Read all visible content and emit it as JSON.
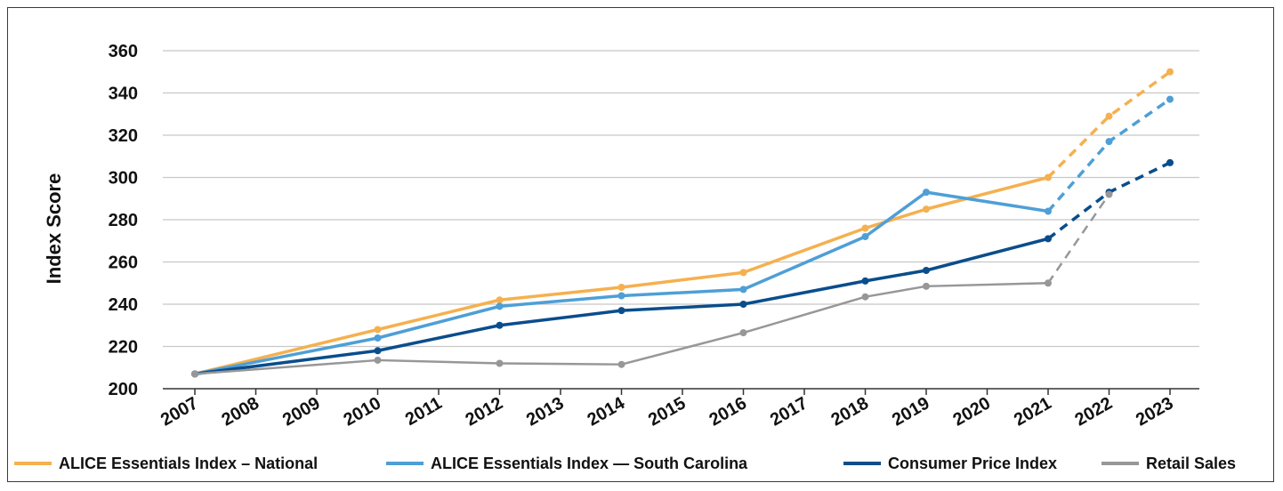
{
  "chart_data": {
    "type": "line",
    "ylabel": "Index Score",
    "ylim": [
      200,
      360
    ],
    "yticks": [
      200,
      220,
      240,
      260,
      280,
      300,
      320,
      340,
      360
    ],
    "grid": true,
    "legend_position": "bottom",
    "categories": [
      "2007",
      "2008",
      "2009",
      "2010",
      "2011",
      "2012",
      "2013",
      "2014",
      "2015",
      "2016",
      "2017",
      "2018",
      "2019",
      "2020",
      "2021",
      "2022",
      "2023"
    ],
    "projected_from": "2021",
    "series": [
      {
        "name": "ALICE Essentials Index – National",
        "color": "#F5B04F",
        "points": [
          [
            "2007",
            207
          ],
          [
            "2010",
            228
          ],
          [
            "2012",
            242
          ],
          [
            "2014",
            248
          ],
          [
            "2016",
            255
          ],
          [
            "2018",
            276
          ],
          [
            "2019",
            285
          ],
          [
            "2021",
            300
          ],
          [
            "2022",
            329
          ],
          [
            "2023",
            350
          ]
        ]
      },
      {
        "name": "ALICE Essentials Index — South Carolina",
        "color": "#4E9FD6",
        "points": [
          [
            "2007",
            207
          ],
          [
            "2010",
            224
          ],
          [
            "2012",
            239
          ],
          [
            "2014",
            244
          ],
          [
            "2016",
            247
          ],
          [
            "2018",
            272
          ],
          [
            "2019",
            293
          ],
          [
            "2021",
            284
          ],
          [
            "2022",
            317
          ],
          [
            "2023",
            337
          ]
        ]
      },
      {
        "name": "Consumer Price Index",
        "color": "#0A4D8C",
        "points": [
          [
            "2007",
            207
          ],
          [
            "2010",
            218
          ],
          [
            "2012",
            230
          ],
          [
            "2014",
            237
          ],
          [
            "2016",
            240
          ],
          [
            "2018",
            251
          ],
          [
            "2019",
            256
          ],
          [
            "2021",
            271
          ],
          [
            "2022",
            293
          ],
          [
            "2023",
            307
          ]
        ]
      },
      {
        "name": "Retail Sales",
        "color": "#979797",
        "points": [
          [
            "2007",
            207
          ],
          [
            "2010",
            213.5
          ],
          [
            "2012",
            212
          ],
          [
            "2014",
            211.5
          ],
          [
            "2016",
            226.5
          ],
          [
            "2018",
            243.5
          ],
          [
            "2019",
            248.5
          ],
          [
            "2021",
            250
          ],
          [
            "2022",
            292
          ]
        ]
      }
    ]
  }
}
